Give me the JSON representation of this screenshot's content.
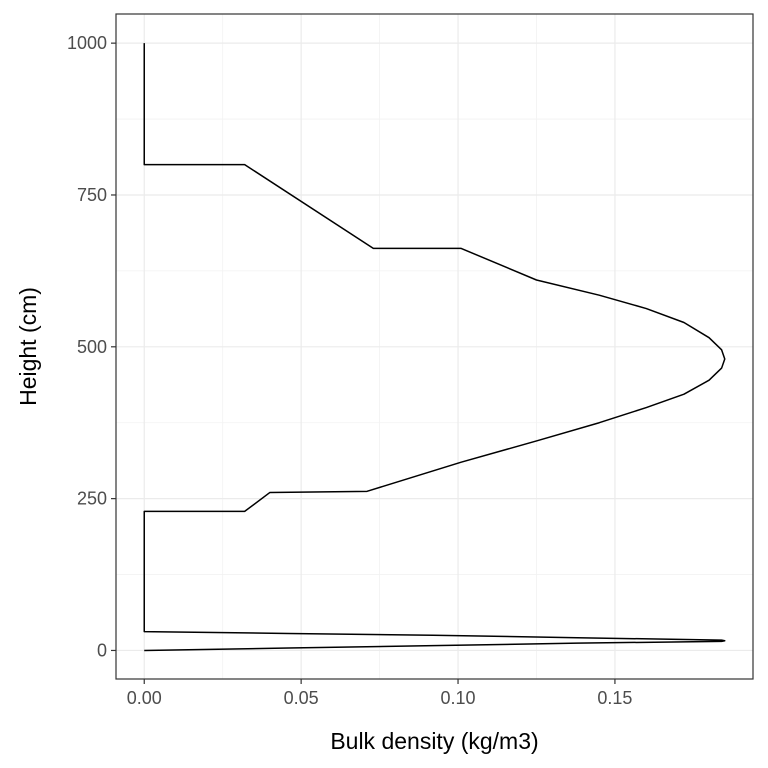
{
  "chart_data": {
    "type": "line",
    "title": "",
    "xlabel": "Bulk density (kg/m3)",
    "ylabel": "Height (cm)",
    "xlim": [
      -0.009,
      0.194
    ],
    "ylim": [
      -47,
      1048
    ],
    "x_ticks": [
      0.0,
      0.05,
      0.1,
      0.15
    ],
    "x_tick_labels": [
      "0.00",
      "0.05",
      "0.10",
      "0.15"
    ],
    "y_ticks": [
      0,
      250,
      500,
      750,
      1000
    ],
    "y_tick_labels": [
      "0",
      "250",
      "500",
      "750",
      "1000"
    ],
    "grid": true,
    "theme": "bw",
    "line_color": "#000000",
    "series": [
      {
        "x": [
          0.0,
          0.046,
          0.092,
          0.138,
          0.184,
          0.185,
          0.184,
          0.138,
          0.092,
          0.046,
          0.0,
          0.0,
          0.032,
          0.04,
          0.071,
          0.101,
          0.125,
          0.145,
          0.16,
          0.172,
          0.18,
          0.184,
          0.185,
          0.184,
          0.18,
          0.172,
          0.16,
          0.145,
          0.125,
          0.101,
          0.073,
          0.032,
          0.0,
          0.0
        ],
        "y": [
          0,
          4,
          8,
          12,
          15,
          16,
          17,
          21,
          25,
          28,
          31,
          229,
          229,
          260,
          262,
          310,
          345,
          375,
          400,
          422,
          445,
          465,
          480,
          495,
          515,
          540,
          563,
          585,
          610,
          662,
          662,
          800,
          800,
          1000
        ]
      }
    ]
  }
}
